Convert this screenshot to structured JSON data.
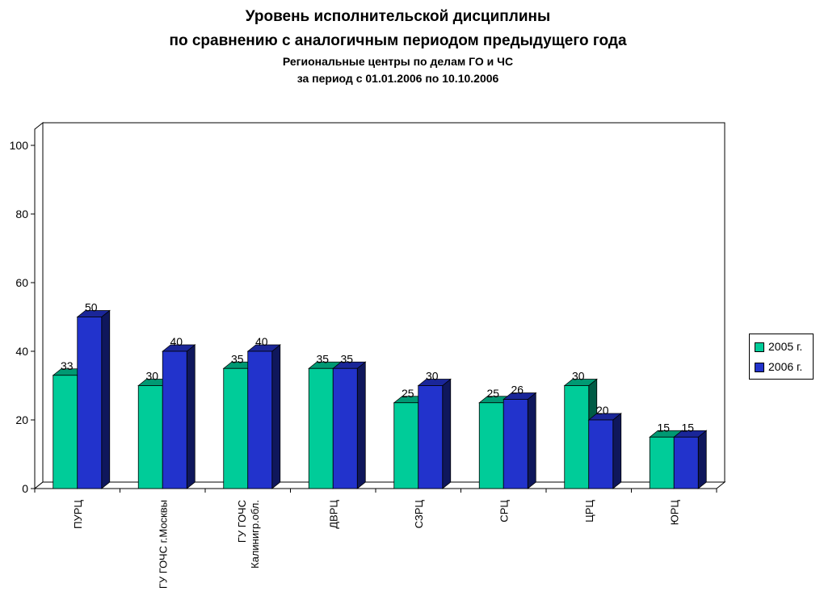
{
  "title": "Уровень исполнительской дисциплины",
  "title_line2": "по сравнению с аналогичным периодом предыдущего года",
  "subtitle": "Региональные центры по делам ГО и ЧС",
  "subtitle_line2": "за период с 01.01.2006 по 10.10.2006",
  "colors": {
    "series_2005": "#00cc99",
    "series_2006": "#2233cc",
    "frame": "#000000"
  },
  "chart_data": {
    "type": "bar",
    "three_d": true,
    "categories": [
      [
        "ПУРЦ"
      ],
      [
        "ГУ ГОЧС г.Москвы"
      ],
      [
        "ГУ ГОЧС",
        "Калинигр.обл."
      ],
      [
        "ДВРЦ"
      ],
      [
        "СЗРЦ"
      ],
      [
        "СРЦ"
      ],
      [
        "ЦРЦ"
      ],
      [
        "ЮРЦ"
      ]
    ],
    "series": [
      {
        "name": "2005 г.",
        "values": [
          33,
          30,
          35,
          35,
          25,
          25,
          30,
          15
        ]
      },
      {
        "name": "2006 г.",
        "values": [
          50,
          40,
          40,
          35,
          30,
          26,
          20,
          15
        ]
      }
    ],
    "ylim": [
      0,
      100
    ],
    "yticks": [
      0,
      20,
      40,
      60,
      80,
      100
    ],
    "grid": false,
    "data_labels": true,
    "legend_position": "right"
  }
}
